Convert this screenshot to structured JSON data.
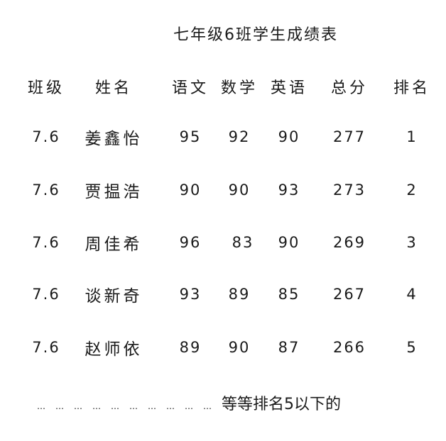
{
  "title": "七年级6班学生成绩表",
  "headers": [
    "班级",
    "姓名",
    "语文",
    "数学",
    "英语",
    "总分",
    "排名"
  ],
  "rows": [
    [
      "7.6",
      "姜鑫怡",
      "95",
      "92",
      "90",
      "277",
      "1"
    ],
    [
      "7.6",
      "贾揾浩",
      "90",
      "90",
      "93",
      "273",
      "2"
    ],
    [
      "7.6",
      "周佳希",
      "96",
      "83",
      "90",
      "269",
      "3"
    ],
    [
      "7.6",
      "谈新奇",
      "93",
      "89",
      "85",
      "267",
      "4"
    ],
    [
      "7.6",
      "赵师依",
      "89",
      "90",
      "87",
      "266",
      "5"
    ]
  ],
  "footer": {
    "ellipsis": "…",
    "text": "等等排名5以下的"
  }
}
